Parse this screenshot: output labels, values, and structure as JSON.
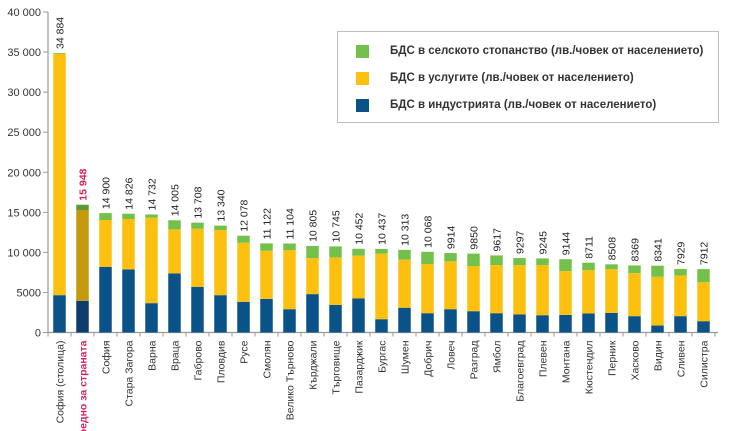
{
  "chart_data": {
    "type": "bar",
    "stacked": true,
    "title": "",
    "xlabel": "",
    "ylabel": "",
    "ylim": [
      0,
      40000
    ],
    "yticks": [
      0,
      5000,
      10000,
      15000,
      20000,
      25000,
      30000,
      35000,
      40000
    ],
    "ytick_labels": [
      "0",
      "5000",
      "10 000",
      "15 000",
      "20 000",
      "25 000",
      "30 000",
      "35 000",
      "40 000"
    ],
    "grid": false,
    "legend_position": "top-right",
    "highlight_category_index": 1,
    "categories": [
      "София (столица)",
      "средно за страната",
      "София",
      "Стара Загора",
      "Варна",
      "Враца",
      "Габрово",
      "Пловдив",
      "Русе",
      "Смолян",
      "Велико Търново",
      "Кърджали",
      "Търговище",
      "Пазарджик",
      "Бургас",
      "Шумен",
      "Добрич",
      "Ловеч",
      "Разград",
      "Ямбол",
      "Благоевград",
      "Плевен",
      "Монтана",
      "Кюстендил",
      "Перник",
      "Хасково",
      "Видин",
      "Сливен",
      "Силистра"
    ],
    "totals": [
      34884,
      15948,
      14900,
      14826,
      14732,
      14005,
      13708,
      13340,
      12078,
      11122,
      11104,
      10805,
      10745,
      10452,
      10437,
      10313,
      10068,
      9914,
      9850,
      9617,
      9297,
      9245,
      9144,
      8711,
      8508,
      8369,
      8341,
      7929,
      7912
    ],
    "total_labels": [
      "34 884",
      "15 948",
      "14 900",
      "14 826",
      "14 732",
      "14 005",
      "13 708",
      "13 340",
      "12 078",
      "11 122",
      "11 104",
      "10 805",
      "10 745",
      "10 452",
      "10 437",
      "10 313",
      "10 068",
      "9914",
      "9850",
      "9617",
      "9297",
      "9245",
      "9144",
      "8711",
      "8508",
      "8369",
      "8341",
      "7929",
      "7912"
    ],
    "series": [
      {
        "name": "БДС в индустрията (лв./човек от населението)",
        "key": "industry",
        "color": "#0a5288",
        "highlight_color": "#0b3c6b",
        "values": [
          4660,
          3950,
          8200,
          7870,
          3660,
          7370,
          5700,
          4660,
          3830,
          4200,
          2910,
          4790,
          3450,
          4250,
          1660,
          3090,
          2410,
          2910,
          2660,
          2410,
          2250,
          2160,
          2200,
          2370,
          2450,
          2040,
          870,
          2040,
          1410
        ]
      },
      {
        "name": "БДС в услугите (лв./човек от населението)",
        "key": "services",
        "color": "#fdc00e",
        "highlight_color": "#c49a0c",
        "values": [
          30124,
          11340,
          5840,
          6290,
          10670,
          5500,
          7250,
          8130,
          7370,
          6000,
          7380,
          4500,
          5920,
          5340,
          8180,
          6000,
          6130,
          5970,
          5630,
          6000,
          6160,
          6250,
          5460,
          5420,
          5460,
          5370,
          6080,
          5080,
          4880
        ]
      },
      {
        "name": "БДС в селското стопанство (лв./човек от населението)",
        "key": "agriculture",
        "color": "#73c04b",
        "highlight_color": "#5a9a3a",
        "values": [
          100,
          658,
          860,
          666,
          402,
          1135,
          758,
          550,
          878,
          922,
          814,
          1515,
          1375,
          862,
          597,
          1223,
          1528,
          1034,
          1560,
          1207,
          887,
          835,
          1484,
          921,
          598,
          959,
          1391,
          809,
          1622
        ]
      }
    ],
    "legend": [
      {
        "label": "БДС в селското стопанство (лв./човек от населението)",
        "color": "#73c04b"
      },
      {
        "label": "БДС в услугите (лв./човек от населението)",
        "color": "#fdc00e"
      },
      {
        "label": "БДС в индустрията (лв./човек от населението)",
        "color": "#0a5288"
      }
    ]
  }
}
